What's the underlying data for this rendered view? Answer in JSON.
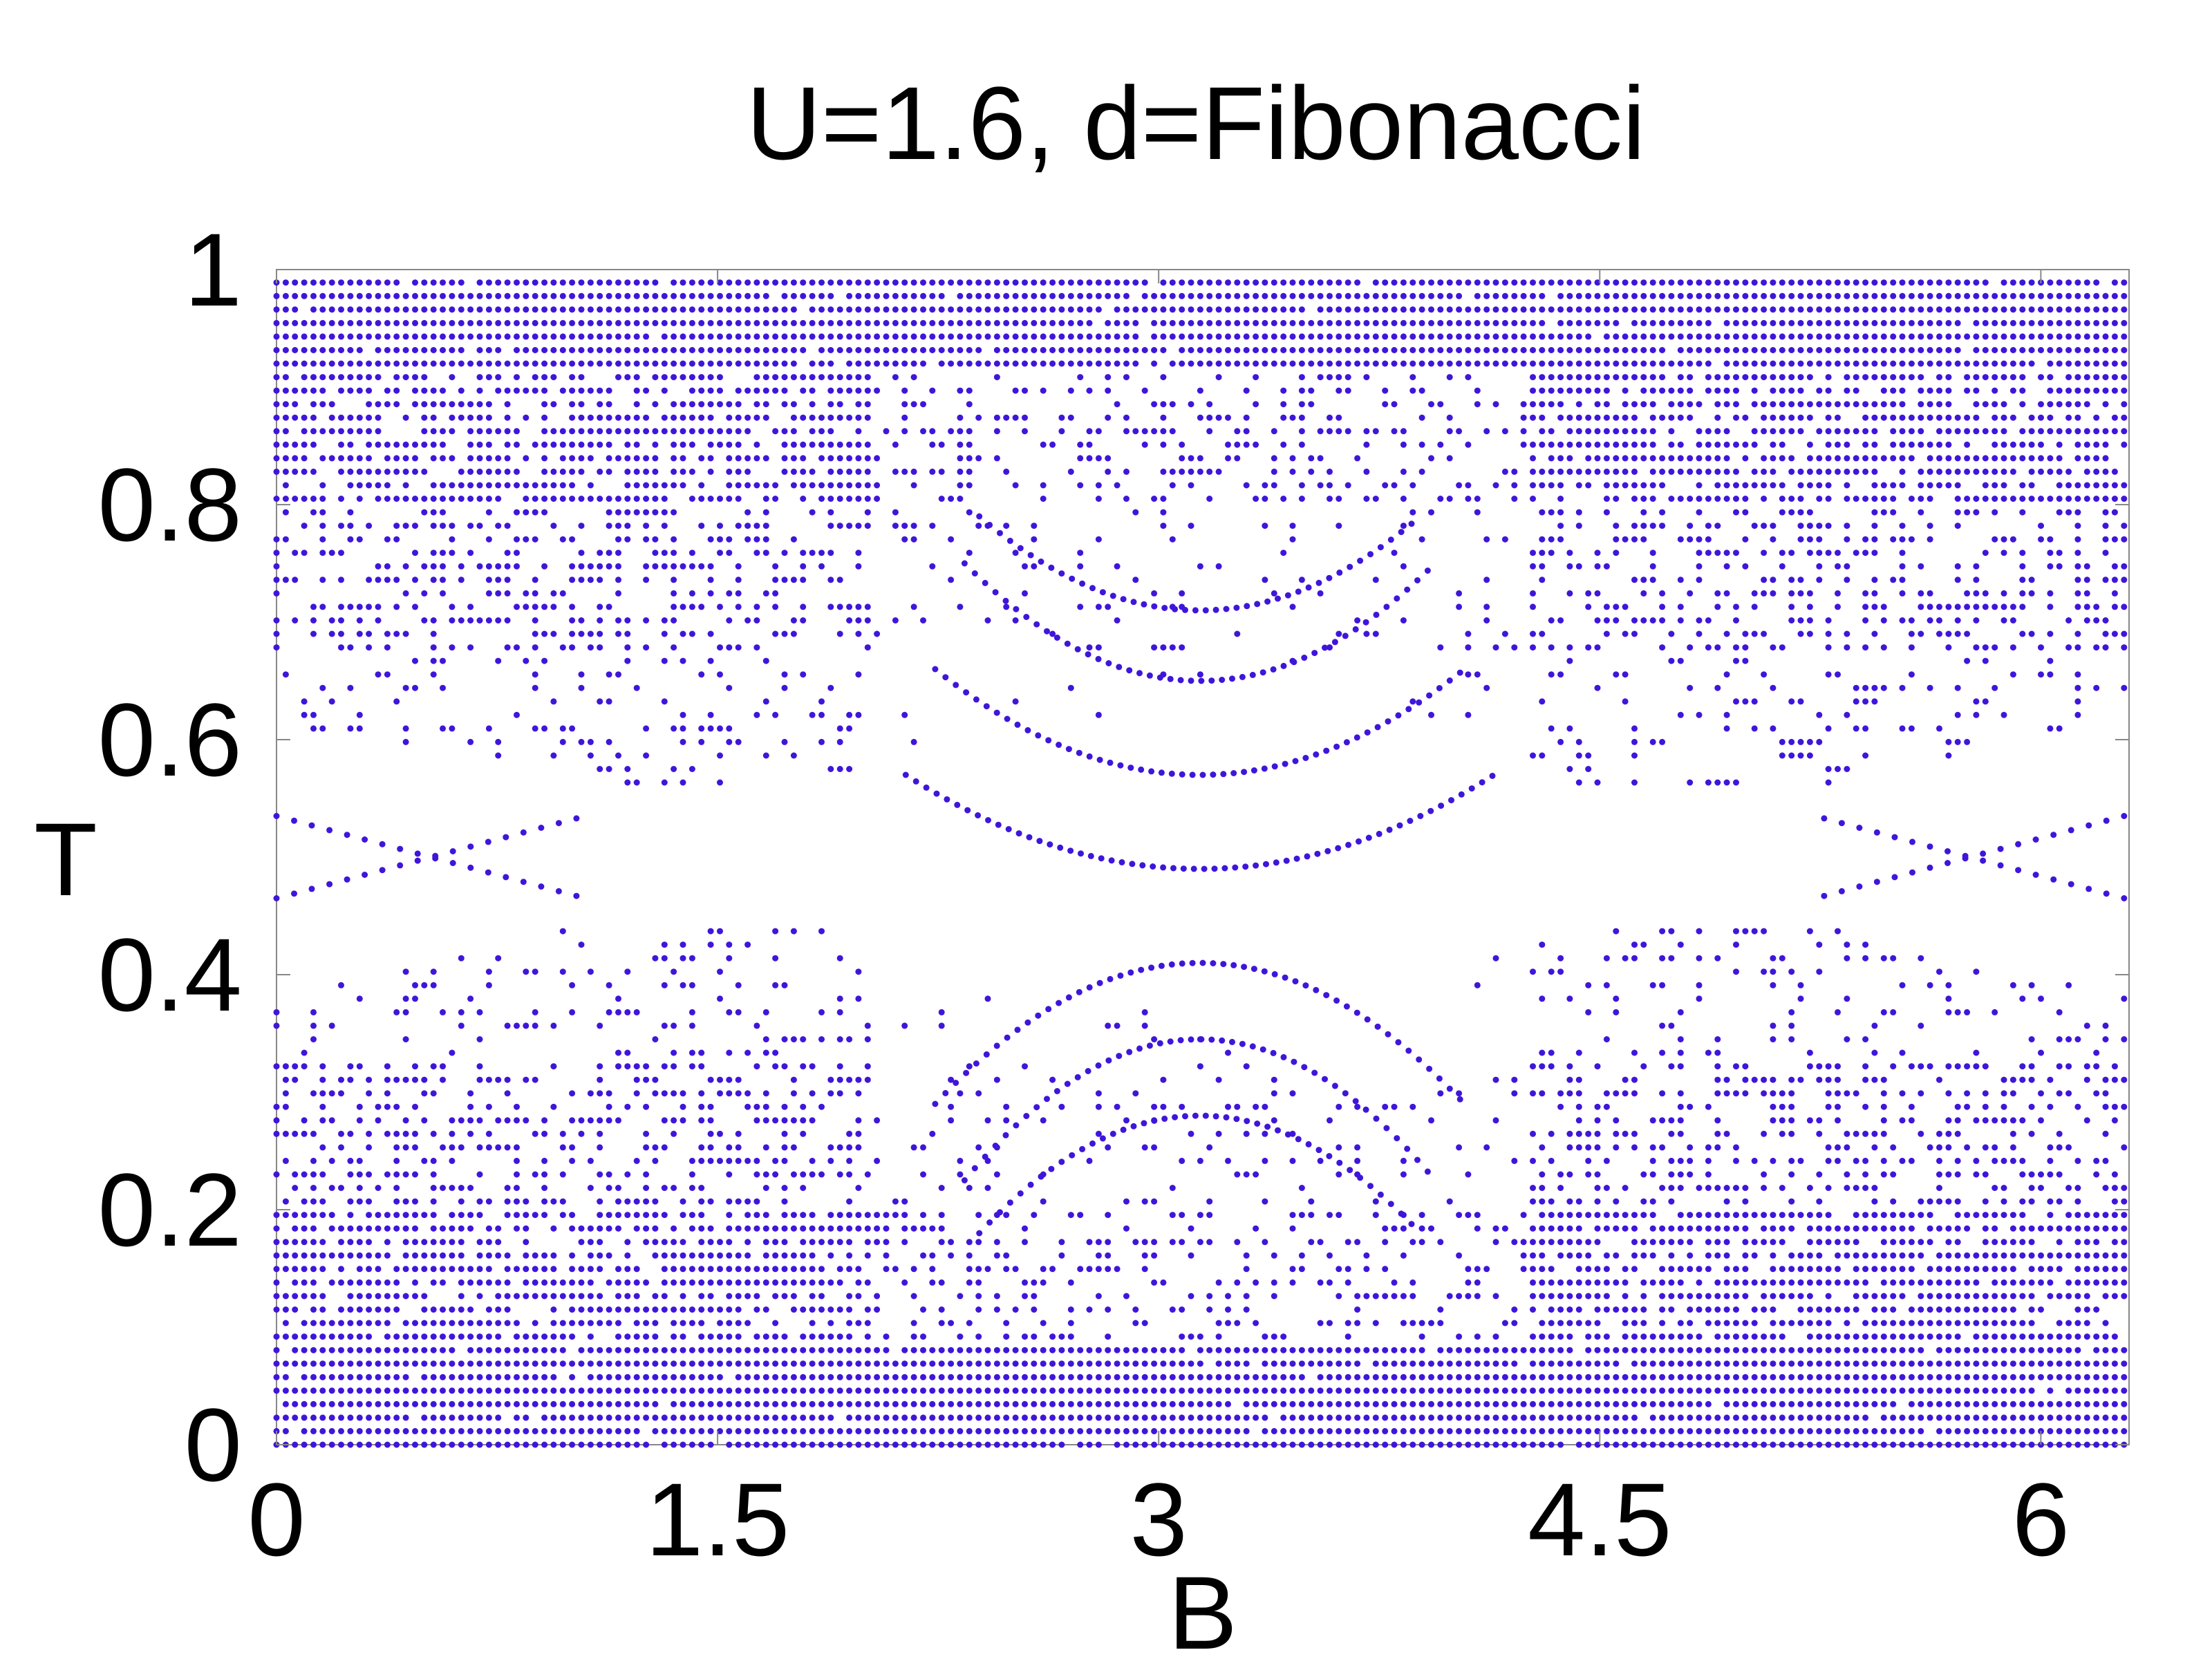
{
  "chart_data": {
    "type": "scatter",
    "title": "U=1.6, d=Fibonacci",
    "xlabel": "B",
    "ylabel": "T",
    "xlim": [
      0,
      6.3
    ],
    "ylim": [
      0,
      1
    ],
    "xticks": [
      0,
      1.5,
      3,
      4.5,
      6
    ],
    "xtick_labels": [
      "0",
      "1.5",
      "3",
      "4.5",
      "6"
    ],
    "yticks": [
      0,
      0.2,
      0.4,
      0.6,
      0.8,
      1
    ],
    "ytick_labels": [
      "0",
      "0.2",
      "0.4",
      "0.6",
      "0.8",
      "1"
    ],
    "grid": false,
    "legend": "none",
    "marker_color": "#3f16d9",
    "series": [
      {
        "description_only": false,
        "columns": {
          "B_step": 0.0314,
          "B_count": 201
        },
        "dense_bands_T": [
          [
            0.0,
            0.08
          ],
          [
            0.92,
            1.0
          ]
        ],
        "gap_arcs": [
          {
            "center_B": 3.14,
            "T_top": 0.5,
            "T_bottom": 0.49,
            "half_width_B": 1.0
          },
          {
            "center_B": 3.14,
            "T_top": 0.42,
            "T_bottom": 0.4,
            "half_width_B": 0.9
          },
          {
            "center_B": 0.0,
            "T_top": 0.6,
            "T_bottom": 0.4,
            "half_width_B": 1.1
          },
          {
            "center_B": 6.28,
            "T_top": 0.6,
            "T_bottom": 0.4,
            "half_width_B": 1.1
          }
        ]
      }
    ]
  }
}
